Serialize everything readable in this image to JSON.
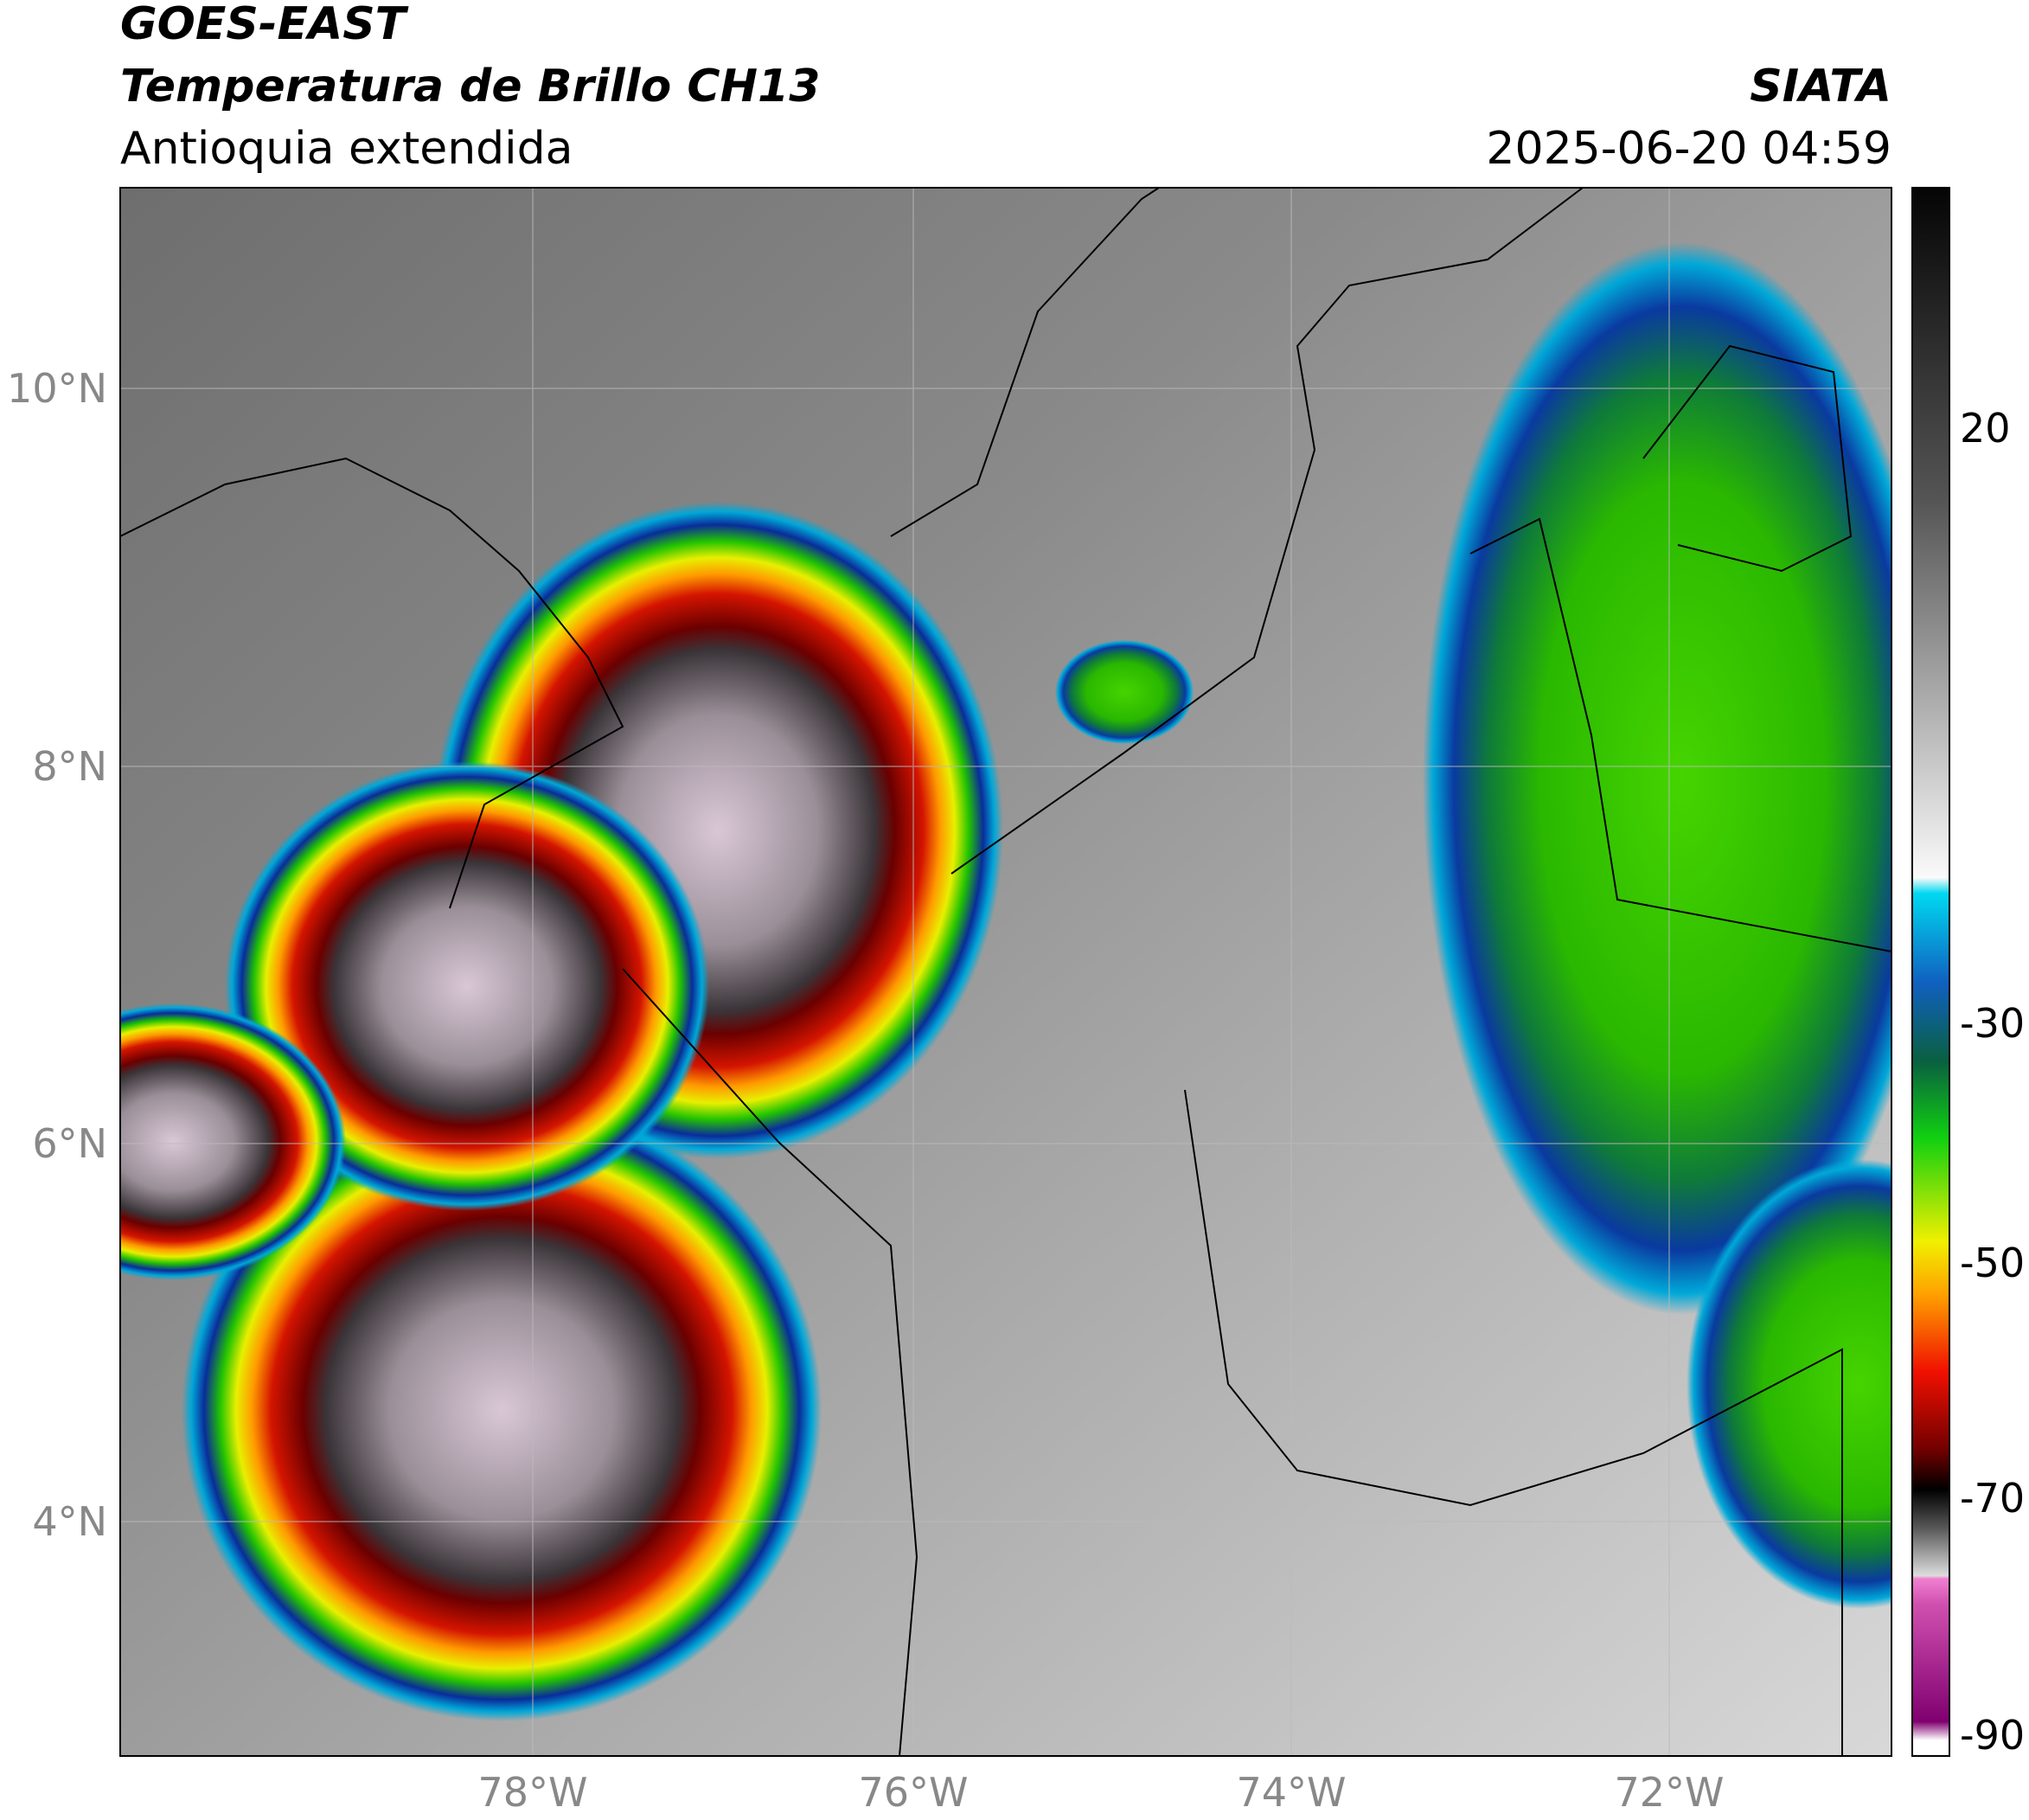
{
  "header": {
    "title": "GOES-EAST",
    "subtitle": "Temperatura de Brillo CH13",
    "region": "Antioquia extendida",
    "source": "SIATA",
    "datetime": "2025-06-20 04:59"
  },
  "map": {
    "lat_labels": [
      "10°N",
      "8°N",
      "6°N",
      "4°N"
    ],
    "lon_labels": [
      "78°W",
      "76°W",
      "74°W",
      "72°W"
    ]
  },
  "colorbar": {
    "labels": [
      "20",
      "-30",
      "-50",
      "-70",
      "-90"
    ]
  }
}
